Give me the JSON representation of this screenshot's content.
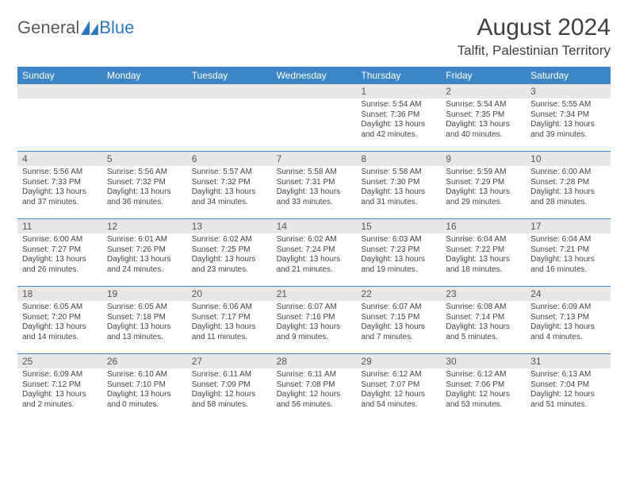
{
  "logo": {
    "text1": "General",
    "text2": "Blue",
    "accent_color": "#2e77bd"
  },
  "title": "August 2024",
  "location": "Talfit, Palestinian Territory",
  "header_bg": "#3d86c6",
  "daynum_bg": "#e7e7e7",
  "border_color": "#3d86c6",
  "day_names": [
    "Sunday",
    "Monday",
    "Tuesday",
    "Wednesday",
    "Thursday",
    "Friday",
    "Saturday"
  ],
  "weeks": [
    [
      {
        "n": "",
        "sr": "",
        "ss": "",
        "dl": ""
      },
      {
        "n": "",
        "sr": "",
        "ss": "",
        "dl": ""
      },
      {
        "n": "",
        "sr": "",
        "ss": "",
        "dl": ""
      },
      {
        "n": "",
        "sr": "",
        "ss": "",
        "dl": ""
      },
      {
        "n": "1",
        "sr": "Sunrise: 5:54 AM",
        "ss": "Sunset: 7:36 PM",
        "dl": "Daylight: 13 hours and 42 minutes."
      },
      {
        "n": "2",
        "sr": "Sunrise: 5:54 AM",
        "ss": "Sunset: 7:35 PM",
        "dl": "Daylight: 13 hours and 40 minutes."
      },
      {
        "n": "3",
        "sr": "Sunrise: 5:55 AM",
        "ss": "Sunset: 7:34 PM",
        "dl": "Daylight: 13 hours and 39 minutes."
      }
    ],
    [
      {
        "n": "4",
        "sr": "Sunrise: 5:56 AM",
        "ss": "Sunset: 7:33 PM",
        "dl": "Daylight: 13 hours and 37 minutes."
      },
      {
        "n": "5",
        "sr": "Sunrise: 5:56 AM",
        "ss": "Sunset: 7:32 PM",
        "dl": "Daylight: 13 hours and 36 minutes."
      },
      {
        "n": "6",
        "sr": "Sunrise: 5:57 AM",
        "ss": "Sunset: 7:32 PM",
        "dl": "Daylight: 13 hours and 34 minutes."
      },
      {
        "n": "7",
        "sr": "Sunrise: 5:58 AM",
        "ss": "Sunset: 7:31 PM",
        "dl": "Daylight: 13 hours and 33 minutes."
      },
      {
        "n": "8",
        "sr": "Sunrise: 5:58 AM",
        "ss": "Sunset: 7:30 PM",
        "dl": "Daylight: 13 hours and 31 minutes."
      },
      {
        "n": "9",
        "sr": "Sunrise: 5:59 AM",
        "ss": "Sunset: 7:29 PM",
        "dl": "Daylight: 13 hours and 29 minutes."
      },
      {
        "n": "10",
        "sr": "Sunrise: 6:00 AM",
        "ss": "Sunset: 7:28 PM",
        "dl": "Daylight: 13 hours and 28 minutes."
      }
    ],
    [
      {
        "n": "11",
        "sr": "Sunrise: 6:00 AM",
        "ss": "Sunset: 7:27 PM",
        "dl": "Daylight: 13 hours and 26 minutes."
      },
      {
        "n": "12",
        "sr": "Sunrise: 6:01 AM",
        "ss": "Sunset: 7:26 PM",
        "dl": "Daylight: 13 hours and 24 minutes."
      },
      {
        "n": "13",
        "sr": "Sunrise: 6:02 AM",
        "ss": "Sunset: 7:25 PM",
        "dl": "Daylight: 13 hours and 23 minutes."
      },
      {
        "n": "14",
        "sr": "Sunrise: 6:02 AM",
        "ss": "Sunset: 7:24 PM",
        "dl": "Daylight: 13 hours and 21 minutes."
      },
      {
        "n": "15",
        "sr": "Sunrise: 6:03 AM",
        "ss": "Sunset: 7:23 PM",
        "dl": "Daylight: 13 hours and 19 minutes."
      },
      {
        "n": "16",
        "sr": "Sunrise: 6:04 AM",
        "ss": "Sunset: 7:22 PM",
        "dl": "Daylight: 13 hours and 18 minutes."
      },
      {
        "n": "17",
        "sr": "Sunrise: 6:04 AM",
        "ss": "Sunset: 7:21 PM",
        "dl": "Daylight: 13 hours and 16 minutes."
      }
    ],
    [
      {
        "n": "18",
        "sr": "Sunrise: 6:05 AM",
        "ss": "Sunset: 7:20 PM",
        "dl": "Daylight: 13 hours and 14 minutes."
      },
      {
        "n": "19",
        "sr": "Sunrise: 6:05 AM",
        "ss": "Sunset: 7:18 PM",
        "dl": "Daylight: 13 hours and 13 minutes."
      },
      {
        "n": "20",
        "sr": "Sunrise: 6:06 AM",
        "ss": "Sunset: 7:17 PM",
        "dl": "Daylight: 13 hours and 11 minutes."
      },
      {
        "n": "21",
        "sr": "Sunrise: 6:07 AM",
        "ss": "Sunset: 7:16 PM",
        "dl": "Daylight: 13 hours and 9 minutes."
      },
      {
        "n": "22",
        "sr": "Sunrise: 6:07 AM",
        "ss": "Sunset: 7:15 PM",
        "dl": "Daylight: 13 hours and 7 minutes."
      },
      {
        "n": "23",
        "sr": "Sunrise: 6:08 AM",
        "ss": "Sunset: 7:14 PM",
        "dl": "Daylight: 13 hours and 5 minutes."
      },
      {
        "n": "24",
        "sr": "Sunrise: 6:09 AM",
        "ss": "Sunset: 7:13 PM",
        "dl": "Daylight: 13 hours and 4 minutes."
      }
    ],
    [
      {
        "n": "25",
        "sr": "Sunrise: 6:09 AM",
        "ss": "Sunset: 7:12 PM",
        "dl": "Daylight: 13 hours and 2 minutes."
      },
      {
        "n": "26",
        "sr": "Sunrise: 6:10 AM",
        "ss": "Sunset: 7:10 PM",
        "dl": "Daylight: 13 hours and 0 minutes."
      },
      {
        "n": "27",
        "sr": "Sunrise: 6:11 AM",
        "ss": "Sunset: 7:09 PM",
        "dl": "Daylight: 12 hours and 58 minutes."
      },
      {
        "n": "28",
        "sr": "Sunrise: 6:11 AM",
        "ss": "Sunset: 7:08 PM",
        "dl": "Daylight: 12 hours and 56 minutes."
      },
      {
        "n": "29",
        "sr": "Sunrise: 6:12 AM",
        "ss": "Sunset: 7:07 PM",
        "dl": "Daylight: 12 hours and 54 minutes."
      },
      {
        "n": "30",
        "sr": "Sunrise: 6:12 AM",
        "ss": "Sunset: 7:06 PM",
        "dl": "Daylight: 12 hours and 53 minutes."
      },
      {
        "n": "31",
        "sr": "Sunrise: 6:13 AM",
        "ss": "Sunset: 7:04 PM",
        "dl": "Daylight: 12 hours and 51 minutes."
      }
    ]
  ]
}
